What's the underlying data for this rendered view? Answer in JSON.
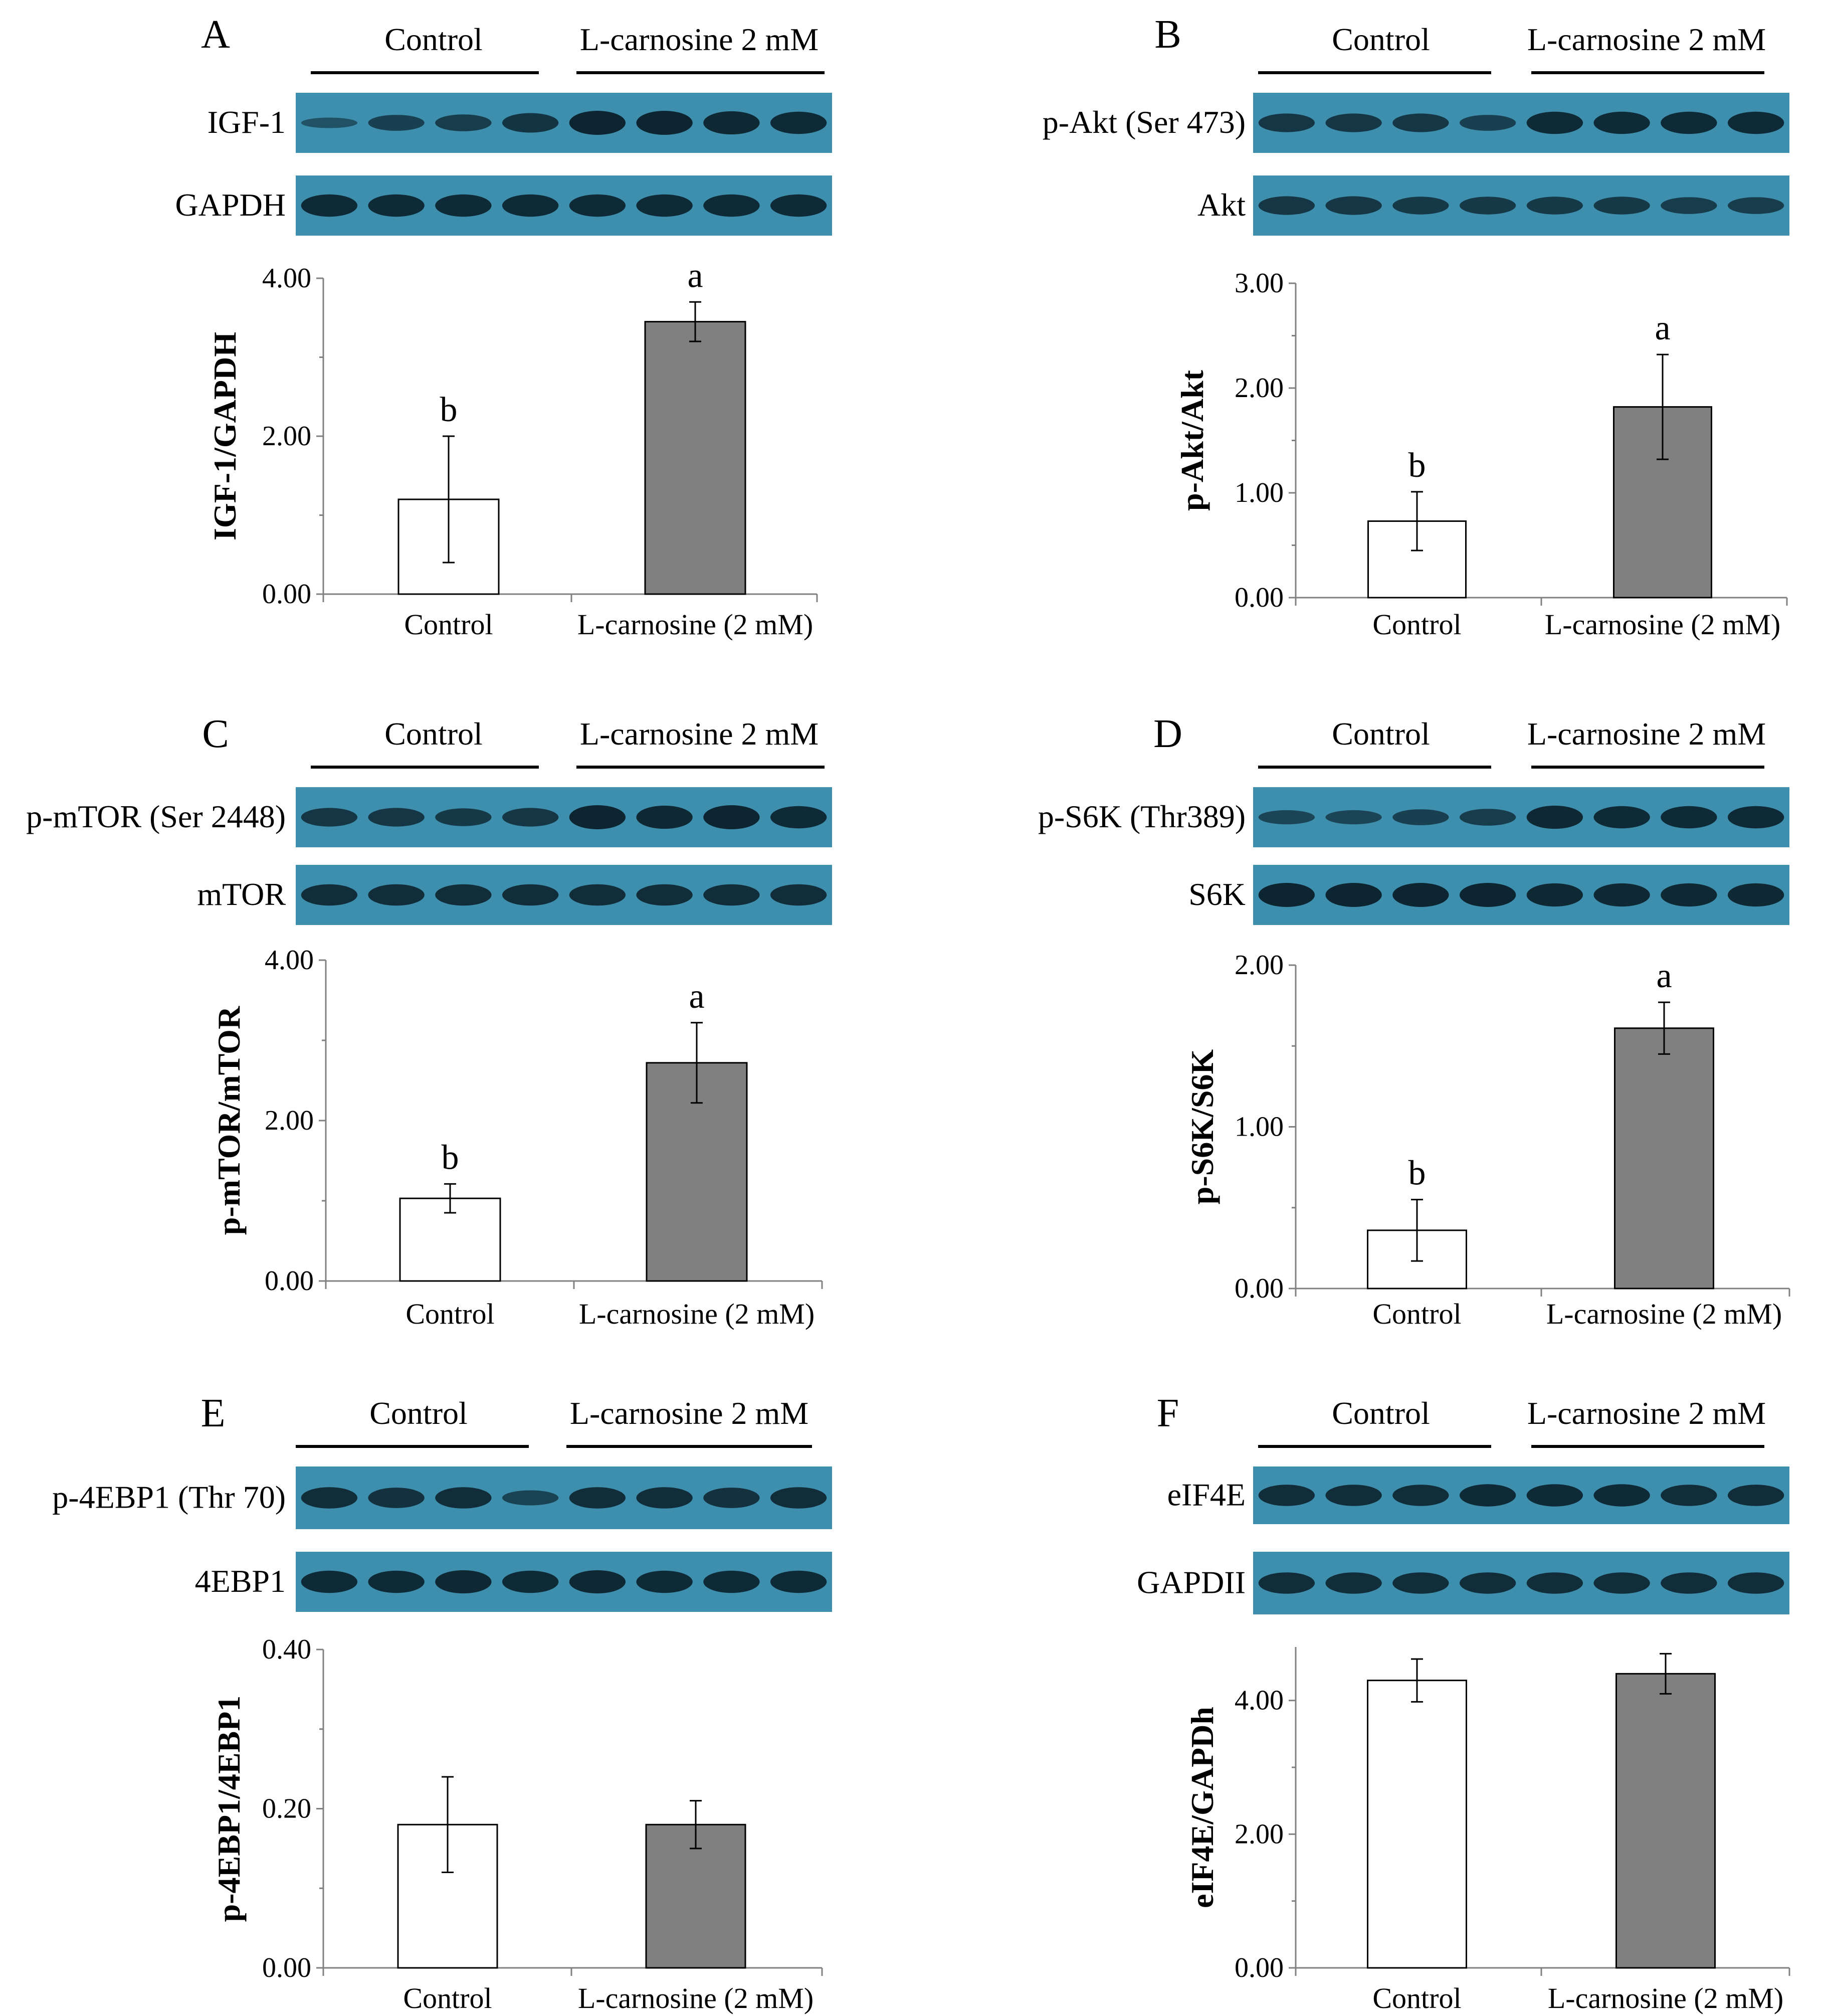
{
  "figure": {
    "groups": [
      "Control",
      "L-carnosine 2 mM"
    ],
    "colors": {
      "control_bar": "#ffffff",
      "treatment_bar": "#808080",
      "blot_bg": "#3e8fae",
      "band": "#0d2530"
    }
  },
  "chart_data": [
    {
      "panel": "A",
      "type": "bar",
      "blots": [
        {
          "label": "IGF-1",
          "intensities": [
            0.25,
            0.55,
            0.6,
            0.75,
            1.0,
            1.0,
            0.95,
            0.9
          ]
        },
        {
          "label": "GAPDH",
          "intensities": [
            0.9,
            0.9,
            0.9,
            0.9,
            0.9,
            0.9,
            0.9,
            0.9
          ]
        }
      ],
      "categories": [
        "Control",
        "L-carnosine (2 mM)"
      ],
      "values": [
        1.2,
        3.45
      ],
      "errors": [
        0.8,
        0.25
      ],
      "significance": [
        "b",
        "a"
      ],
      "ylabel": "IGF-1/GAPDH",
      "ylim": [
        0,
        4
      ],
      "yticks": [
        0,
        2,
        4
      ],
      "ytick_labels": [
        "0.00",
        "2.00",
        "4.00"
      ]
    },
    {
      "panel": "B",
      "type": "bar",
      "blots": [
        {
          "label": "p-Akt (Ser 473)",
          "intensities": [
            0.7,
            0.7,
            0.7,
            0.55,
            0.9,
            0.9,
            0.9,
            0.9
          ]
        },
        {
          "label": "Akt",
          "intensities": [
            0.7,
            0.7,
            0.65,
            0.65,
            0.65,
            0.65,
            0.6,
            0.6
          ]
        }
      ],
      "categories": [
        "Control",
        "L-carnosine (2 mM)"
      ],
      "values": [
        0.73,
        1.82
      ],
      "errors": [
        0.28,
        0.5
      ],
      "significance": [
        "b",
        "a"
      ],
      "ylabel": "p-Akt/Akt",
      "ylim": [
        0,
        3
      ],
      "yticks": [
        0,
        1,
        2,
        3
      ],
      "ytick_labels": [
        "0.00",
        "1.00",
        "2.00",
        "3.00"
      ]
    },
    {
      "panel": "C",
      "type": "bar",
      "blots": [
        {
          "label": "p-mTOR (Ser 2448)",
          "intensities": [
            0.7,
            0.7,
            0.65,
            0.7,
            1.0,
            0.95,
            1.0,
            0.9
          ]
        },
        {
          "label": "mTOR",
          "intensities": [
            0.85,
            0.85,
            0.85,
            0.85,
            0.85,
            0.85,
            0.85,
            0.85
          ]
        }
      ],
      "categories": [
        "Control",
        "L-carnosine (2 mM)"
      ],
      "values": [
        1.03,
        2.72
      ],
      "errors": [
        0.18,
        0.5
      ],
      "significance": [
        "b",
        "a"
      ],
      "ylabel": "p-mTOR/mTOR",
      "ylim": [
        0,
        4
      ],
      "yticks": [
        0,
        2,
        4
      ],
      "ytick_labels": [
        "0.00",
        "2.00",
        "4.00"
      ]
    },
    {
      "panel": "D",
      "type": "bar",
      "blots": [
        {
          "label": "p-S6K (Thr389)",
          "intensities": [
            0.45,
            0.45,
            0.55,
            0.6,
            0.95,
            0.9,
            0.9,
            0.9
          ]
        },
        {
          "label": "S6K",
          "intensities": [
            1.0,
            1.0,
            1.0,
            1.0,
            0.95,
            0.95,
            0.95,
            0.95
          ]
        }
      ],
      "categories": [
        "Control",
        "L-carnosine (2 mM)"
      ],
      "values": [
        0.36,
        1.61
      ],
      "errors": [
        0.19,
        0.16
      ],
      "significance": [
        "b",
        "a"
      ],
      "ylabel": "p-S6K/S6K",
      "ylim": [
        0,
        2
      ],
      "yticks": [
        0,
        1,
        2
      ],
      "ytick_labels": [
        "0.00",
        "1.00",
        "2.00"
      ]
    },
    {
      "panel": "E",
      "type": "bar",
      "blots": [
        {
          "label": "p-4EBP1 (Thr 70)",
          "intensities": [
            0.85,
            0.8,
            0.85,
            0.5,
            0.85,
            0.85,
            0.8,
            0.85
          ]
        },
        {
          "label": "4EBP1",
          "intensities": [
            0.9,
            0.9,
            0.95,
            0.9,
            0.95,
            0.9,
            0.9,
            0.9
          ]
        }
      ],
      "categories": [
        "Control",
        "L-carnosine (2 mM)"
      ],
      "values": [
        0.18,
        0.18
      ],
      "errors": [
        0.06,
        0.03
      ],
      "significance": [
        "",
        ""
      ],
      "ylabel": "p-4EBP1/4EBP1",
      "ylim": [
        0,
        0.4
      ],
      "yticks": [
        0,
        0.2,
        0.4
      ],
      "ytick_labels": [
        "0.00",
        "0.20",
        "0.40"
      ]
    },
    {
      "panel": "F",
      "type": "bar",
      "blots": [
        {
          "label": "eIF4E",
          "intensities": [
            0.85,
            0.85,
            0.85,
            0.9,
            0.9,
            0.9,
            0.85,
            0.85
          ]
        },
        {
          "label": "GAPDII",
          "intensities": [
            0.85,
            0.85,
            0.85,
            0.85,
            0.85,
            0.85,
            0.85,
            0.85
          ]
        }
      ],
      "categories": [
        "Control",
        "L-carnosine (2 mM)"
      ],
      "values": [
        4.3,
        4.4
      ],
      "errors": [
        0.32,
        0.3
      ],
      "significance": [
        "",
        ""
      ],
      "ylabel": "eIF4E/GAPDh",
      "ylim": [
        0,
        4.8
      ],
      "yticks": [
        0,
        2,
        4
      ],
      "ytick_labels": [
        "0.00",
        "2.00",
        "4.00"
      ]
    }
  ]
}
